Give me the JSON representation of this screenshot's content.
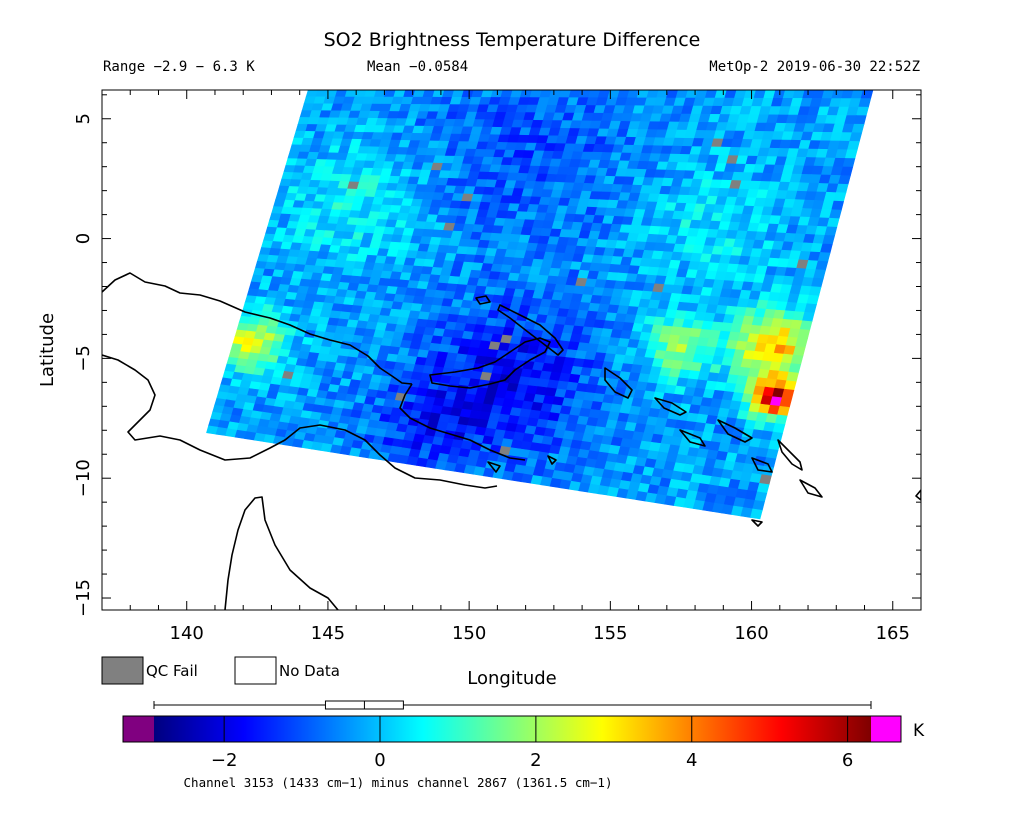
{
  "header": {
    "title": "SO2 Brightness Temperature Difference",
    "range": "Range −2.9 − 6.3 K",
    "mean": "Mean −0.0584",
    "satellite": "MetOp-2 2019-06-30 22:52Z"
  },
  "legend": {
    "qc_fail": "QC Fail",
    "no_data": "No Data",
    "qc_fail_color": "#808080",
    "no_data_color": "#ffffff"
  },
  "colorbar": {
    "unit": "K",
    "caption": "Channel 3153 (1433 cm−1) minus channel 2867 (1361.5 cm−1)",
    "min": -2.9,
    "max": 6.3,
    "under_color": "#800080",
    "over_color": "#ff00ff",
    "stops": [
      "#00007f",
      "#0000ff",
      "#007fff",
      "#00ffff",
      "#7fff7f",
      "#ffff00",
      "#ff7f00",
      "#ff0000",
      "#7f0000"
    ],
    "ticks": [
      -2,
      0,
      2,
      4,
      6
    ],
    "tick_labels": [
      "−2",
      "0",
      "2",
      "4",
      "6"
    ],
    "boxplot": {
      "whisker_low": -2.9,
      "q1": -0.7,
      "median": -0.2,
      "q3": 0.3,
      "whisker_high": 6.3
    }
  },
  "chart_data": {
    "type": "heatmap",
    "title": "SO2 Brightness Temperature Difference",
    "xlabel": "Longitude",
    "ylabel": "Latitude",
    "xlim": [
      137,
      166
    ],
    "ylim": [
      -15.5,
      6.2
    ],
    "xticks": [
      140,
      145,
      150,
      155,
      160,
      165
    ],
    "xtick_labels": [
      "140",
      "145",
      "150",
      "155",
      "160",
      "165"
    ],
    "yticks": [
      5,
      0,
      -5,
      -10,
      -15
    ],
    "ytick_labels": [
      "5",
      "0",
      "−5",
      "−10",
      "−15"
    ],
    "swath_corners": [
      [
        144.3,
        6.2
      ],
      [
        164.3,
        6.2
      ],
      [
        160.3,
        -11.7
      ],
      [
        140.7,
        -8.1
      ]
    ],
    "field": {
      "background": -0.3,
      "anomalies": [
        {
          "lon": 142.3,
          "lat": -4.3,
          "value": 2.6,
          "radius": 1.2
        },
        {
          "lon": 160.8,
          "lat": -6.7,
          "value": 6.0,
          "radius": 0.8
        },
        {
          "lon": 160.8,
          "lat": -4.5,
          "value": 3.5,
          "radius": 1.4
        },
        {
          "lon": 157.5,
          "lat": -4.6,
          "value": 1.8,
          "radius": 1.3
        },
        {
          "lon": 151.5,
          "lat": -5.8,
          "value": -1.8,
          "radius": 3.0
        },
        {
          "lon": 148.5,
          "lat": -8.0,
          "value": -1.3,
          "radius": 2.2
        },
        {
          "lon": 152.0,
          "lat": 3.5,
          "value": -1.0,
          "radius": 4.0
        },
        {
          "lon": 146.0,
          "lat": 1.5,
          "value": 0.6,
          "radius": 2.5
        },
        {
          "lon": 158.5,
          "lat": 0.5,
          "value": 0.4,
          "radius": 2.5
        }
      ]
    }
  }
}
